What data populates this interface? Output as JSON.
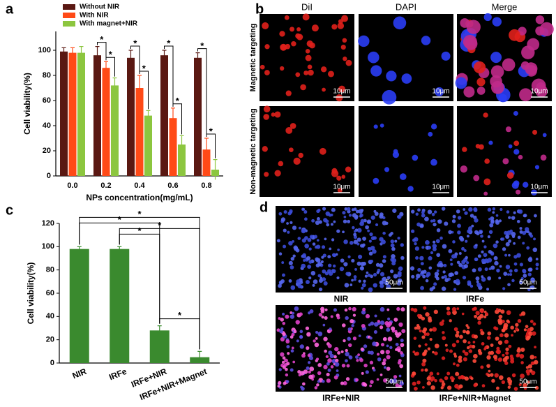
{
  "panel_labels": [
    "a",
    "b",
    "c",
    "d"
  ],
  "chart_data": [
    {
      "type": "bar",
      "xlabel": "NPs concentration(mg/mL)",
      "ylabel": "Cell viability(%)",
      "categories": [
        "0.0",
        "0.2",
        "0.4",
        "0.6",
        "0.8"
      ],
      "series": [
        {
          "name": "Without NIR",
          "color": "#5a1812",
          "values": [
            99,
            96,
            94,
            96,
            94
          ],
          "errors": [
            3,
            7,
            6,
            4,
            4
          ]
        },
        {
          "name": "With NIR",
          "color": "#ff4a17",
          "values": [
            98,
            86,
            70,
            46,
            21
          ],
          "errors": [
            4,
            5,
            10,
            8,
            9
          ]
        },
        {
          "name": "With magnet+NIR",
          "color": "#8cc63f",
          "values": [
            98,
            72,
            48,
            25,
            5
          ],
          "errors": [
            5,
            6,
            4,
            7,
            8
          ]
        }
      ],
      "ylim": [
        0,
        115
      ],
      "yticks": [
        0,
        20,
        40,
        60,
        80,
        100
      ],
      "legend": "upper left",
      "significance": [
        {
          "label": "*",
          "category": 1,
          "from": 0,
          "to": 1
        },
        {
          "label": "*",
          "category": 1,
          "from": 1,
          "to": 2
        },
        {
          "label": "*",
          "category": 2,
          "from": 0,
          "to": 1
        },
        {
          "label": "*",
          "category": 2,
          "from": 1,
          "to": 2
        },
        {
          "label": "*",
          "category": 3,
          "from": 0,
          "to": 1
        },
        {
          "label": "*",
          "category": 3,
          "from": 1,
          "to": 2
        },
        {
          "label": "*",
          "category": 4,
          "from": 0,
          "to": 1
        },
        {
          "label": "*",
          "category": 4,
          "from": 1,
          "to": 2
        }
      ]
    },
    {
      "type": "bar",
      "ylabel": "Cell viability(%)",
      "categories": [
        "NIR",
        "IRFe",
        "IRFe+NIR",
        "IRFe+NIR+Magnet"
      ],
      "values": [
        98,
        98,
        28,
        5
      ],
      "errors": [
        2,
        2,
        4,
        5
      ],
      "color": "#3a8a2e",
      "ylim": [
        0,
        120
      ],
      "yticks": [
        0,
        20,
        40,
        60,
        80,
        100,
        120
      ],
      "significance": [
        {
          "label": "*",
          "from": 2,
          "to": 3
        },
        {
          "label": "*",
          "from": 1,
          "to": 2
        },
        {
          "label": "*",
          "from": 1,
          "to": 3
        },
        {
          "label": "*",
          "from": 0,
          "to": 2
        },
        {
          "label": "*",
          "from": 0,
          "to": 3
        }
      ]
    }
  ],
  "microscopy_b": {
    "columns": [
      "DiI",
      "DAPI",
      "Merge"
    ],
    "rows": [
      "Magnetic targeting",
      "Non-magnetic targeting"
    ],
    "scale_bars": [
      "10μm",
      "10μm",
      "10μm",
      "10μm",
      "10μm",
      "10μm"
    ]
  },
  "microscopy_d": {
    "labels": [
      "NIR",
      "IRFe",
      "IRFe+NIR",
      "IRFe+NIR+Magnet"
    ],
    "scale_bars": [
      "50μm",
      "50μm",
      "50μm",
      "50μm"
    ]
  }
}
